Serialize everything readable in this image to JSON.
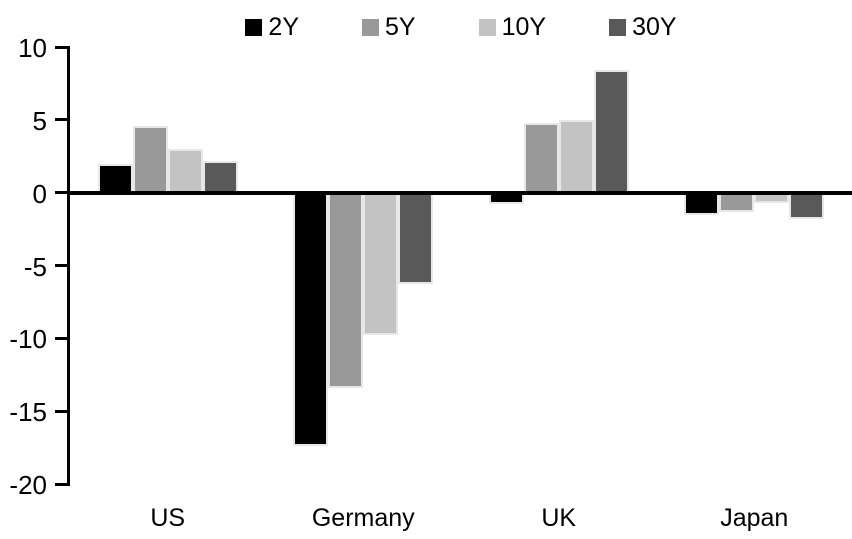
{
  "chart_data": {
    "type": "bar",
    "title": "",
    "xlabel": "",
    "ylabel": "",
    "categories": [
      "US",
      "Germany",
      "UK",
      "Japan"
    ],
    "series": [
      {
        "name": "2Y",
        "color": "#000000",
        "values": [
          2.0,
          -17.4,
          -0.8,
          -1.5
        ]
      },
      {
        "name": "5Y",
        "color": "#999999",
        "values": [
          4.6,
          -13.4,
          4.8,
          -1.3
        ]
      },
      {
        "name": "10Y",
        "color": "#c3c3c3",
        "values": [
          3.0,
          -9.8,
          5.0,
          -0.7
        ]
      },
      {
        "name": "30Y",
        "color": "#595959",
        "values": [
          2.2,
          -6.3,
          8.4,
          -1.8
        ]
      }
    ],
    "ylim": [
      -20,
      10
    ],
    "yticks": [
      10,
      5,
      0,
      -5,
      -10,
      -15,
      -20
    ],
    "grid": false,
    "legend_position": "top-center",
    "axis_color": "#000000",
    "bar_border_color": "#e7e7e7",
    "background_color": "#ffffff"
  }
}
